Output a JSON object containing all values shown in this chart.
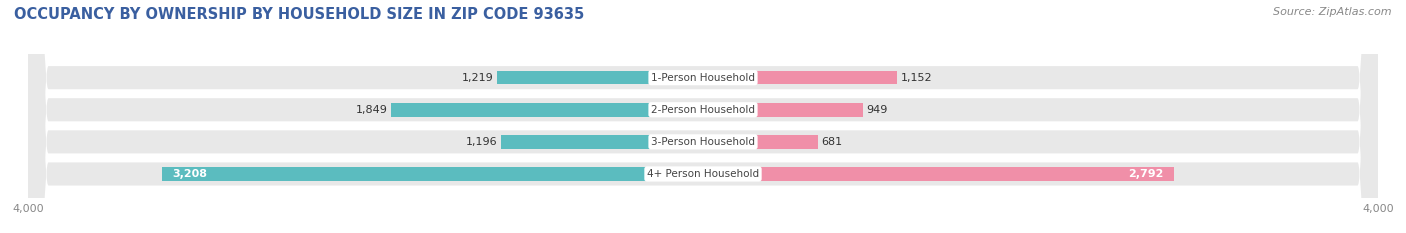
{
  "title": "OCCUPANCY BY OWNERSHIP BY HOUSEHOLD SIZE IN ZIP CODE 93635",
  "source": "Source: ZipAtlas.com",
  "categories": [
    "1-Person Household",
    "2-Person Household",
    "3-Person Household",
    "4+ Person Household"
  ],
  "owner_values": [
    1219,
    1849,
    1196,
    3208
  ],
  "renter_values": [
    1152,
    949,
    681,
    2792
  ],
  "owner_color": "#5bbcbf",
  "renter_color": "#f08fa8",
  "background_color": "#ffffff",
  "row_bg_color": "#e8e8e8",
  "xlim": 4000,
  "title_fontsize": 10.5,
  "source_fontsize": 8,
  "tick_fontsize": 8,
  "bar_label_fontsize": 8,
  "category_fontsize": 7.5,
  "legend_fontsize": 8.5,
  "title_color": "#3a5fa0",
  "source_color": "#888888",
  "tick_color": "#888888",
  "label_dark": "#333333",
  "label_white": "#ffffff"
}
